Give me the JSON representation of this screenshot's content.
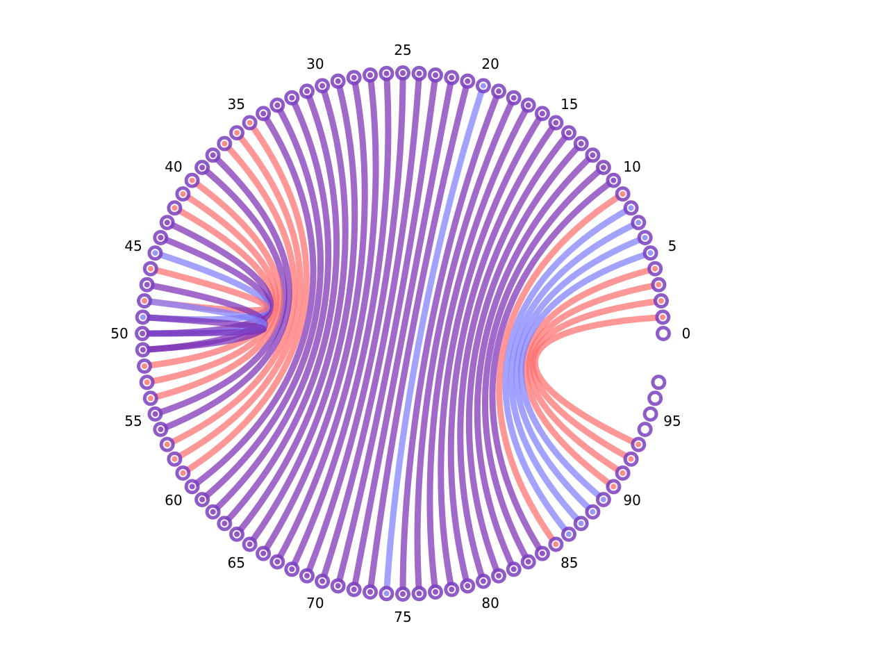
{
  "diagram": {
    "type": "circular-arc-diagram",
    "node_count": 98,
    "tick_labels": [
      "0",
      "5",
      "10",
      "15",
      "20",
      "25",
      "30",
      "35",
      "40",
      "45",
      "50",
      "55",
      "60",
      "65",
      "70",
      "75",
      "80",
      "85",
      "90",
      "95"
    ],
    "tick_step": 5,
    "colors": {
      "node_ring": "#7b3fc0",
      "red_link": "#ff6f6f",
      "blue_link": "#7f7fff",
      "purple_link": "#7b2fb5"
    },
    "links": [
      {
        "from": 1,
        "to": 93,
        "color": "red"
      },
      {
        "from": 2,
        "to": 92,
        "color": "red"
      },
      {
        "from": 3,
        "to": 91,
        "color": "red"
      },
      {
        "from": 4,
        "to": 90,
        "color": "red"
      },
      {
        "from": 5,
        "to": 89,
        "color": "blue"
      },
      {
        "from": 6,
        "to": 88,
        "color": "blue"
      },
      {
        "from": 7,
        "to": 87,
        "color": "blue"
      },
      {
        "from": 8,
        "to": 86,
        "color": "blue"
      },
      {
        "from": 9,
        "to": 85,
        "color": "red"
      },
      {
        "from": 10,
        "to": 84,
        "color": "purple"
      },
      {
        "from": 11,
        "to": 83,
        "color": "purple"
      },
      {
        "from": 12,
        "to": 82,
        "color": "purple"
      },
      {
        "from": 13,
        "to": 81,
        "color": "purple"
      },
      {
        "from": 14,
        "to": 80,
        "color": "purple"
      },
      {
        "from": 15,
        "to": 79,
        "color": "purple"
      },
      {
        "from": 16,
        "to": 78,
        "color": "purple"
      },
      {
        "from": 17,
        "to": 77,
        "color": "purple"
      },
      {
        "from": 18,
        "to": 76,
        "color": "purple"
      },
      {
        "from": 19,
        "to": 75,
        "color": "purple"
      },
      {
        "from": 20,
        "to": 74,
        "color": "blue"
      },
      {
        "from": 21,
        "to": 73,
        "color": "purple"
      },
      {
        "from": 22,
        "to": 72,
        "color": "purple"
      },
      {
        "from": 23,
        "to": 71,
        "color": "purple"
      },
      {
        "from": 24,
        "to": 70,
        "color": "purple"
      },
      {
        "from": 25,
        "to": 69,
        "color": "purple"
      },
      {
        "from": 26,
        "to": 68,
        "color": "purple"
      },
      {
        "from": 27,
        "to": 67,
        "color": "purple"
      },
      {
        "from": 28,
        "to": 66,
        "color": "purple"
      },
      {
        "from": 29,
        "to": 65,
        "color": "purple"
      },
      {
        "from": 30,
        "to": 64,
        "color": "purple"
      },
      {
        "from": 31,
        "to": 63,
        "color": "purple"
      },
      {
        "from": 32,
        "to": 62,
        "color": "purple"
      },
      {
        "from": 33,
        "to": 61,
        "color": "purple"
      },
      {
        "from": 34,
        "to": 60,
        "color": "purple"
      },
      {
        "from": 35,
        "to": 59,
        "color": "red"
      },
      {
        "from": 36,
        "to": 58,
        "color": "red"
      },
      {
        "from": 37,
        "to": 57,
        "color": "red"
      },
      {
        "from": 38,
        "to": 56,
        "color": "purple"
      },
      {
        "from": 39,
        "to": 55,
        "color": "purple"
      },
      {
        "from": 40,
        "to": 54,
        "color": "red"
      },
      {
        "from": 41,
        "to": 53,
        "color": "red"
      },
      {
        "from": 42,
        "to": 52,
        "color": "red"
      },
      {
        "from": 43,
        "to": 51,
        "color": "purple"
      },
      {
        "from": 44,
        "to": 50,
        "color": "purple"
      },
      {
        "from": 45,
        "to": 49,
        "color": "blue"
      },
      {
        "from": 46,
        "to": 48,
        "color": "red"
      },
      {
        "from": 47,
        "to": 51,
        "color": "purple"
      },
      {
        "from": 48,
        "to": 50,
        "color": "blue"
      },
      {
        "from": 49,
        "to": 50,
        "color": "purple"
      }
    ]
  }
}
